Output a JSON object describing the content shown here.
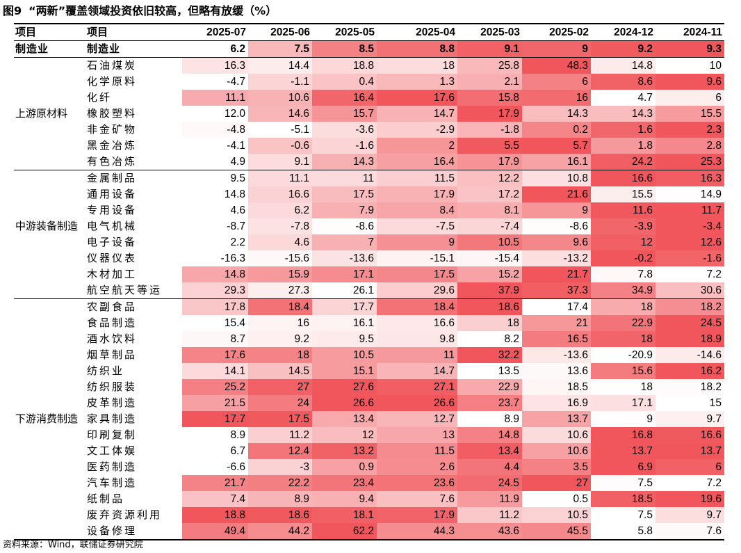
{
  "title": {
    "figure": "图9",
    "text": "“两新”覆盖领域投资依旧较高，但略有放缓（%）"
  },
  "source": "资料来源：Wind，联储证券研究院",
  "header": {
    "col_group": "项目",
    "col_item": "项目"
  },
  "colors": {
    "high": "#f0565b",
    "low": "#ffffff"
  },
  "chart_data": {
    "type": "heatmap",
    "columns": [
      "2025-07",
      "2025-06",
      "2025-05",
      "2025-04",
      "2025-03",
      "2025-02",
      "2024-12",
      "2024-11"
    ],
    "summary": {
      "group": "制造业",
      "name": "制造业",
      "values": [
        6.2,
        7.5,
        8.5,
        8.8,
        9.1,
        9,
        9.2,
        9.3
      ]
    },
    "sections": [
      {
        "name": "上游原材料",
        "rows": [
          {
            "name": "石油煤炭",
            "values": [
              16.3,
              14.4,
              18.8,
              18,
              25.8,
              48.3,
              14.8,
              10
            ]
          },
          {
            "name": "化学原料",
            "values": [
              -4.7,
              -1.1,
              0.4,
              1.3,
              2.1,
              6,
              8.6,
              9.6
            ]
          },
          {
            "name": "化纤",
            "values": [
              11.1,
              10.6,
              16.4,
              17.6,
              15.8,
              16,
              4.7,
              6
            ]
          },
          {
            "name": "橡胶塑料",
            "values": [
              "12.0",
              14.6,
              15.7,
              14.7,
              17.9,
              14.3,
              14.3,
              15.5
            ]
          },
          {
            "name": "非金矿物",
            "values": [
              -4.8,
              -5.1,
              -3.6,
              -2.9,
              -1.8,
              0.2,
              1.6,
              2.3
            ]
          },
          {
            "name": "黑金冶炼",
            "values": [
              -4.1,
              -0.6,
              -1.6,
              2,
              5.5,
              5.7,
              1.8,
              2.8
            ]
          },
          {
            "name": "有色冶炼",
            "values": [
              4.9,
              9.1,
              14.3,
              16.4,
              17.9,
              16.1,
              24.2,
              25.3
            ]
          }
        ]
      },
      {
        "name": "中游装备制造",
        "rows": [
          {
            "name": "金属制品",
            "values": [
              9.5,
              11.1,
              11,
              11.5,
              12.2,
              10.8,
              16.6,
              16.3
            ]
          },
          {
            "name": "通用设备",
            "values": [
              14.8,
              16.6,
              17.5,
              17.9,
              17.2,
              21.6,
              15.5,
              14.9
            ]
          },
          {
            "name": "专用设备",
            "values": [
              4.6,
              6.2,
              7.9,
              8.4,
              8.1,
              9,
              11.6,
              11.7
            ]
          },
          {
            "name": "电气机械",
            "values": [
              -8.7,
              -7.8,
              -8.6,
              -7.5,
              -7.4,
              -8.6,
              -3.9,
              -3.4
            ]
          },
          {
            "name": "电子设备",
            "values": [
              2.2,
              4.6,
              7,
              9,
              10.5,
              9.6,
              12,
              12.6
            ]
          },
          {
            "name": "仪器仪表",
            "values": [
              -16.3,
              -15.6,
              -13.6,
              -15.1,
              -15.4,
              -13.2,
              -0.2,
              -1.6
            ]
          },
          {
            "name": "木材加工",
            "values": [
              14.8,
              15.9,
              17.1,
              17.5,
              15.2,
              21.7,
              7.8,
              7.2
            ]
          },
          {
            "name": "航空航天等运",
            "values": [
              29.3,
              27.3,
              26.1,
              29.6,
              37.9,
              37.3,
              34.9,
              30.6
            ]
          }
        ]
      },
      {
        "name": "下游消费制造",
        "rows": [
          {
            "name": "农副食品",
            "values": [
              17.8,
              18.4,
              17.7,
              18.4,
              18.6,
              17.4,
              18,
              18.2
            ]
          },
          {
            "name": "食品制造",
            "values": [
              15.4,
              16,
              16.1,
              16.6,
              18,
              21,
              22.9,
              24.5
            ]
          },
          {
            "name": "酒水饮料",
            "values": [
              8.7,
              9.2,
              9.5,
              9.8,
              8.2,
              16.5,
              18,
              18.9
            ]
          },
          {
            "name": "烟草制品",
            "values": [
              17.6,
              18,
              10.5,
              11,
              32.2,
              -13.6,
              -20.9,
              -14.6
            ]
          },
          {
            "name": "纺织业",
            "values": [
              14.1,
              14.5,
              15.1,
              14.7,
              13.5,
              13.6,
              15.6,
              16.2
            ]
          },
          {
            "name": "纺织服装",
            "values": [
              25.2,
              27,
              27.6,
              27.1,
              22.9,
              18.5,
              18,
              18.2
            ]
          },
          {
            "name": "皮革制造",
            "values": [
              21.5,
              24,
              26.6,
              26.6,
              23.7,
              16.9,
              17.1,
              15
            ]
          },
          {
            "name": "家具制造",
            "values": [
              17.7,
              17.5,
              13.4,
              12.7,
              8.9,
              13.7,
              9,
              9.7
            ]
          },
          {
            "name": "印刷复制",
            "values": [
              8.9,
              11.2,
              12,
              13,
              14.8,
              10.6,
              16.8,
              16.6
            ]
          },
          {
            "name": "文工体娱",
            "values": [
              6.7,
              12.4,
              13.2,
              11.5,
              13.4,
              10.6,
              13.7,
              13.7
            ]
          },
          {
            "name": "医药制造",
            "values": [
              -6.6,
              -3,
              0.9,
              2.6,
              4.4,
              3.5,
              6.9,
              6
            ]
          },
          {
            "name": "汽车制造",
            "values": [
              21.7,
              22.2,
              23.4,
              23.6,
              24.5,
              27,
              7.5,
              7.2
            ]
          },
          {
            "name": "纸制品",
            "values": [
              7.4,
              8.9,
              9.4,
              7.6,
              11.9,
              0.5,
              18.5,
              19.6
            ]
          },
          {
            "name": "废弃资源利用",
            "values": [
              18.8,
              18.6,
              18.1,
              17.9,
              11.2,
              10.5,
              7.5,
              9.7
            ]
          },
          {
            "name": "设备修理",
            "values": [
              49.4,
              44.2,
              62.2,
              44.3,
              43.6,
              45.5,
              5.8,
              7.6
            ]
          }
        ]
      }
    ]
  }
}
